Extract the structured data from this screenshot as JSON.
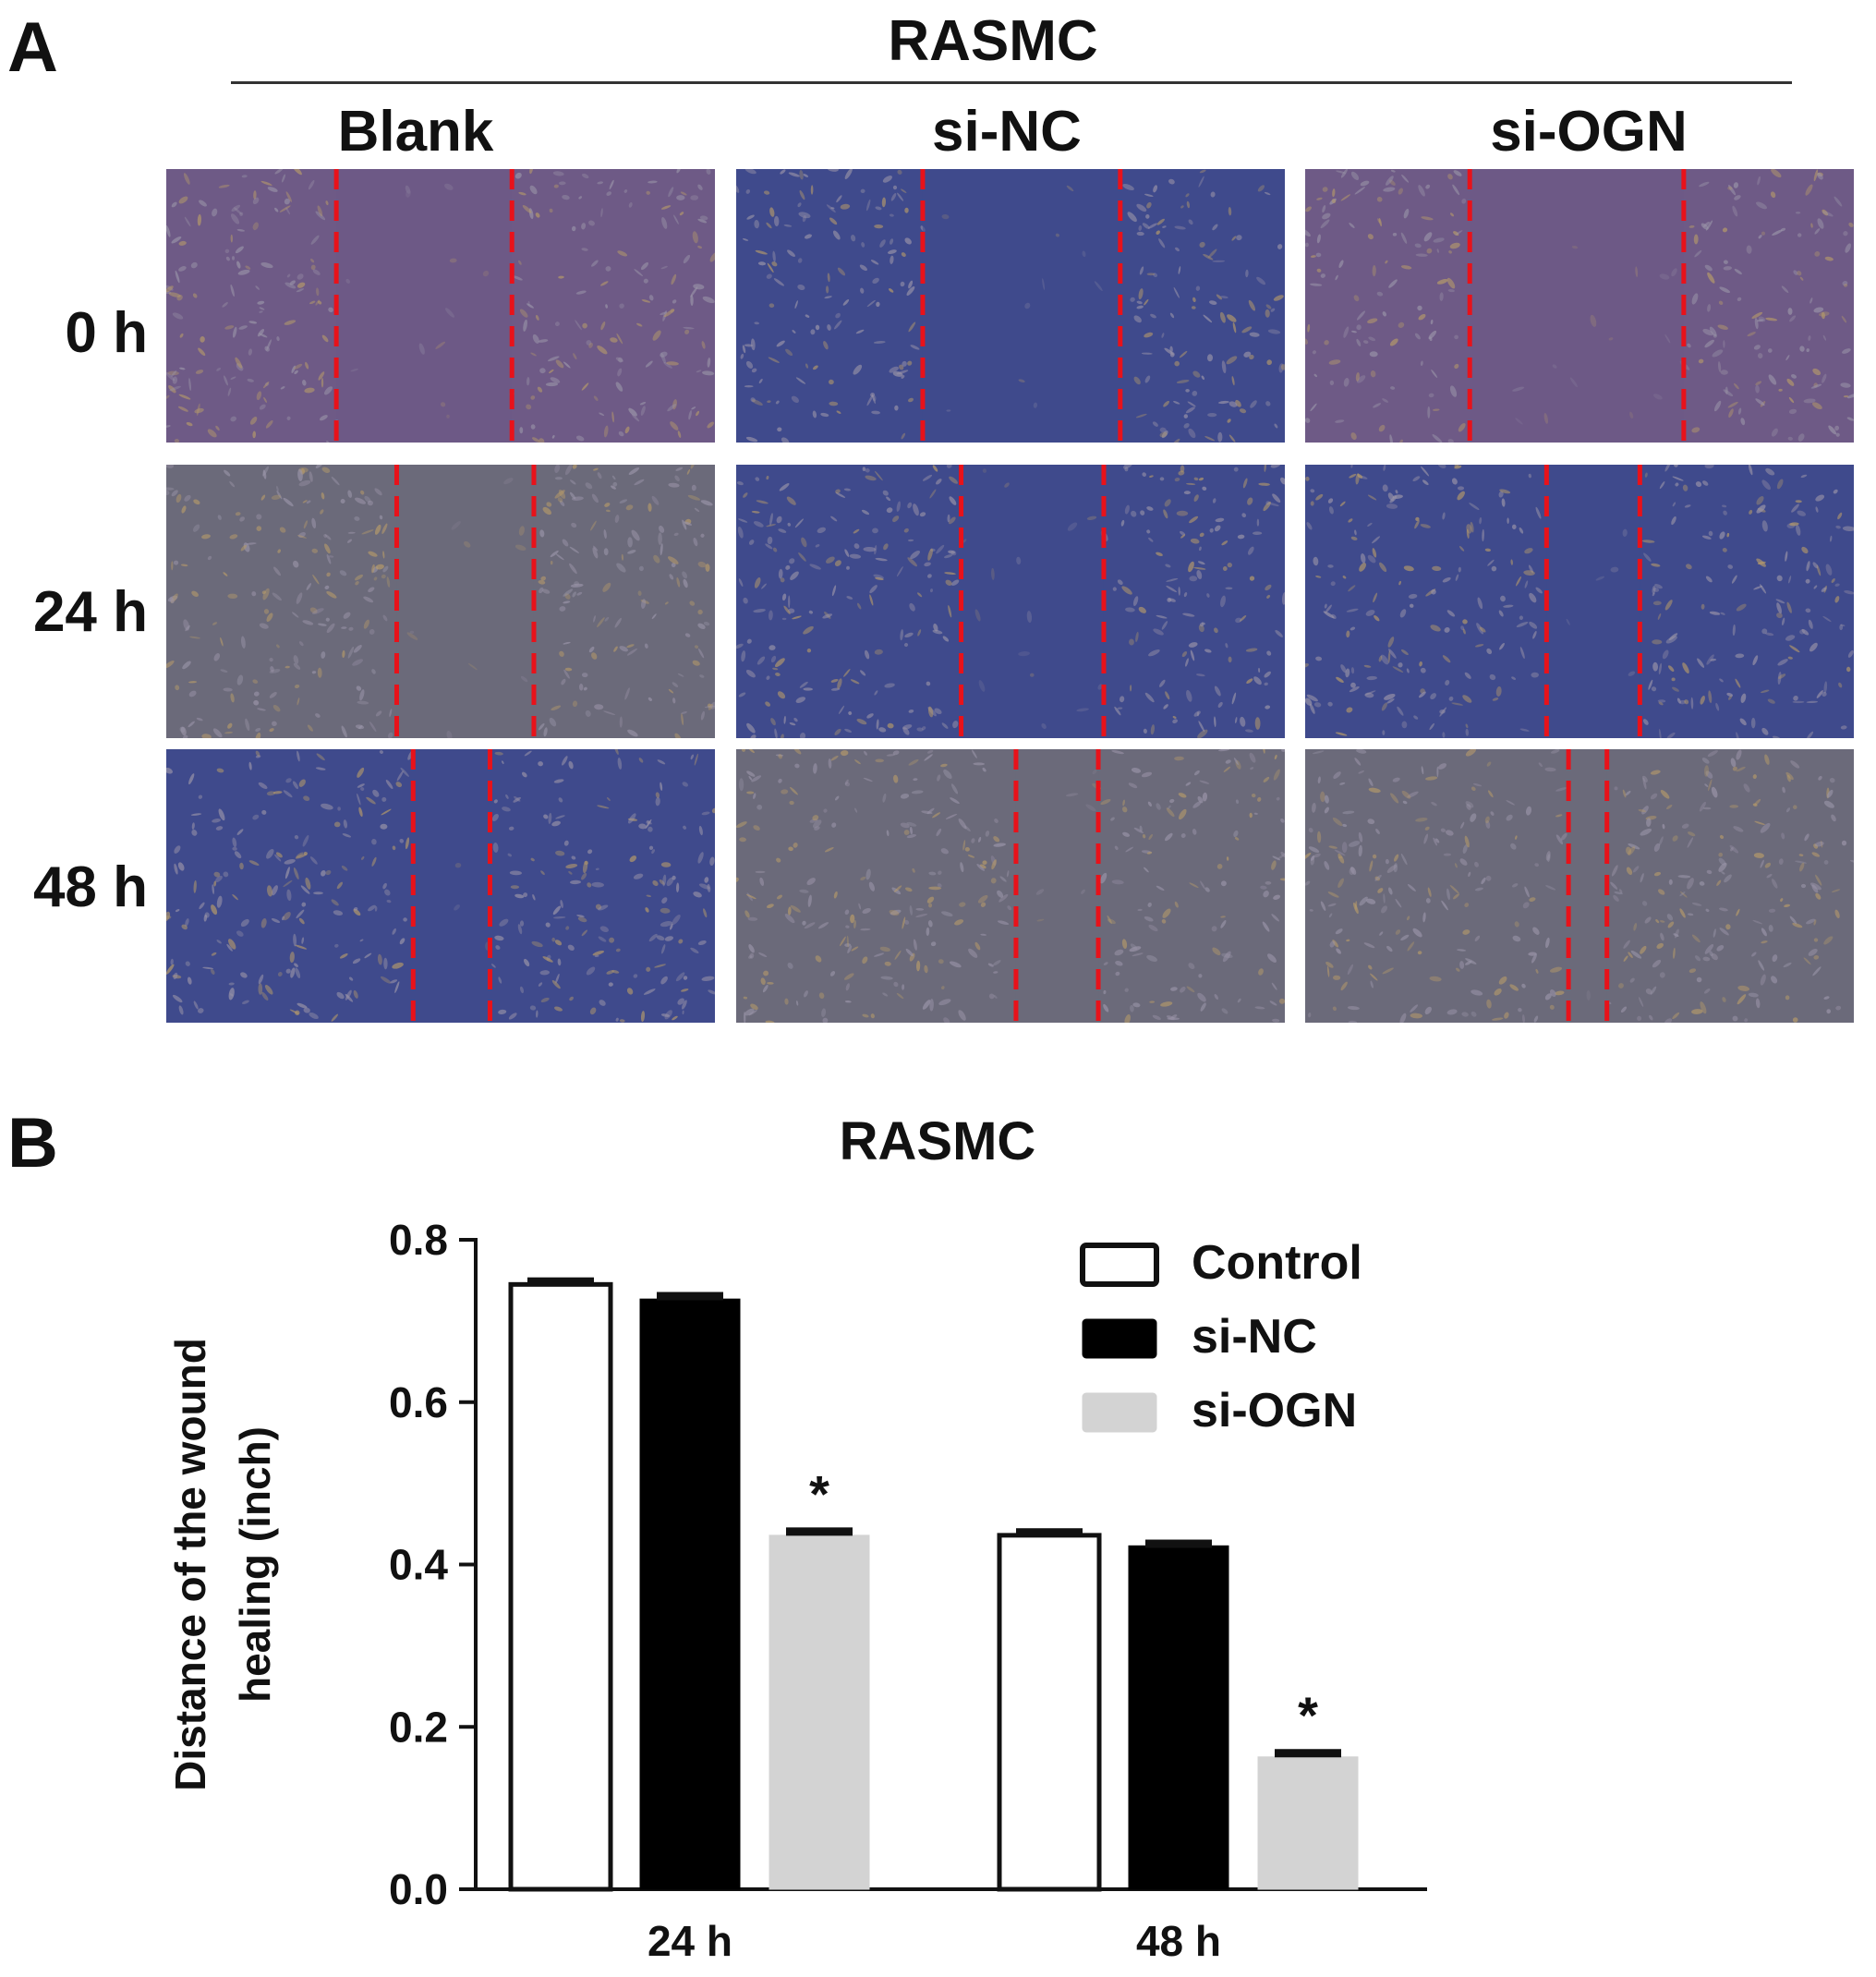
{
  "panel_a": {
    "letter": "A",
    "title": "RASMC",
    "columns": [
      "Blank",
      "si-NC",
      "si-OGN"
    ],
    "rows": [
      "0 h",
      "24 h",
      "48 h"
    ],
    "tone_colors": {
      "purple": "#6e5a86",
      "blue": "#3f4a8c",
      "grey": "#6b6a7a"
    },
    "image_tones": [
      [
        "purple",
        "blue",
        "purple"
      ],
      [
        "grey",
        "blue",
        "blue"
      ],
      [
        "blue",
        "grey",
        "grey"
      ]
    ],
    "scratch_line_color": "#e8121a"
  },
  "panel_b": {
    "letter": "B"
  },
  "chart_data": {
    "type": "bar",
    "title": "RASMC",
    "ylabel": "Distance of the wound healing (inch)",
    "xlabel": "",
    "categories": [
      "24 h",
      "48 h"
    ],
    "ylim": [
      0.0,
      0.8
    ],
    "yticks": [
      "0.0",
      "0.2",
      "0.4",
      "0.6",
      "0.8"
    ],
    "series": [
      {
        "name": "Control",
        "values": [
          0.745,
          0.436
        ],
        "errors": [
          0.003,
          0.003
        ],
        "color": "#ffffff"
      },
      {
        "name": "si-NC",
        "values": [
          0.727,
          0.423
        ],
        "errors": [
          0.003,
          0.002
        ],
        "color": "#000000"
      },
      {
        "name": "si-OGN",
        "values": [
          0.436,
          0.163
        ],
        "errors": [
          0.004,
          0.004
        ],
        "color": "#d3d3d3",
        "annotation": "*"
      }
    ],
    "legend_position": "top-right",
    "grid": false
  }
}
